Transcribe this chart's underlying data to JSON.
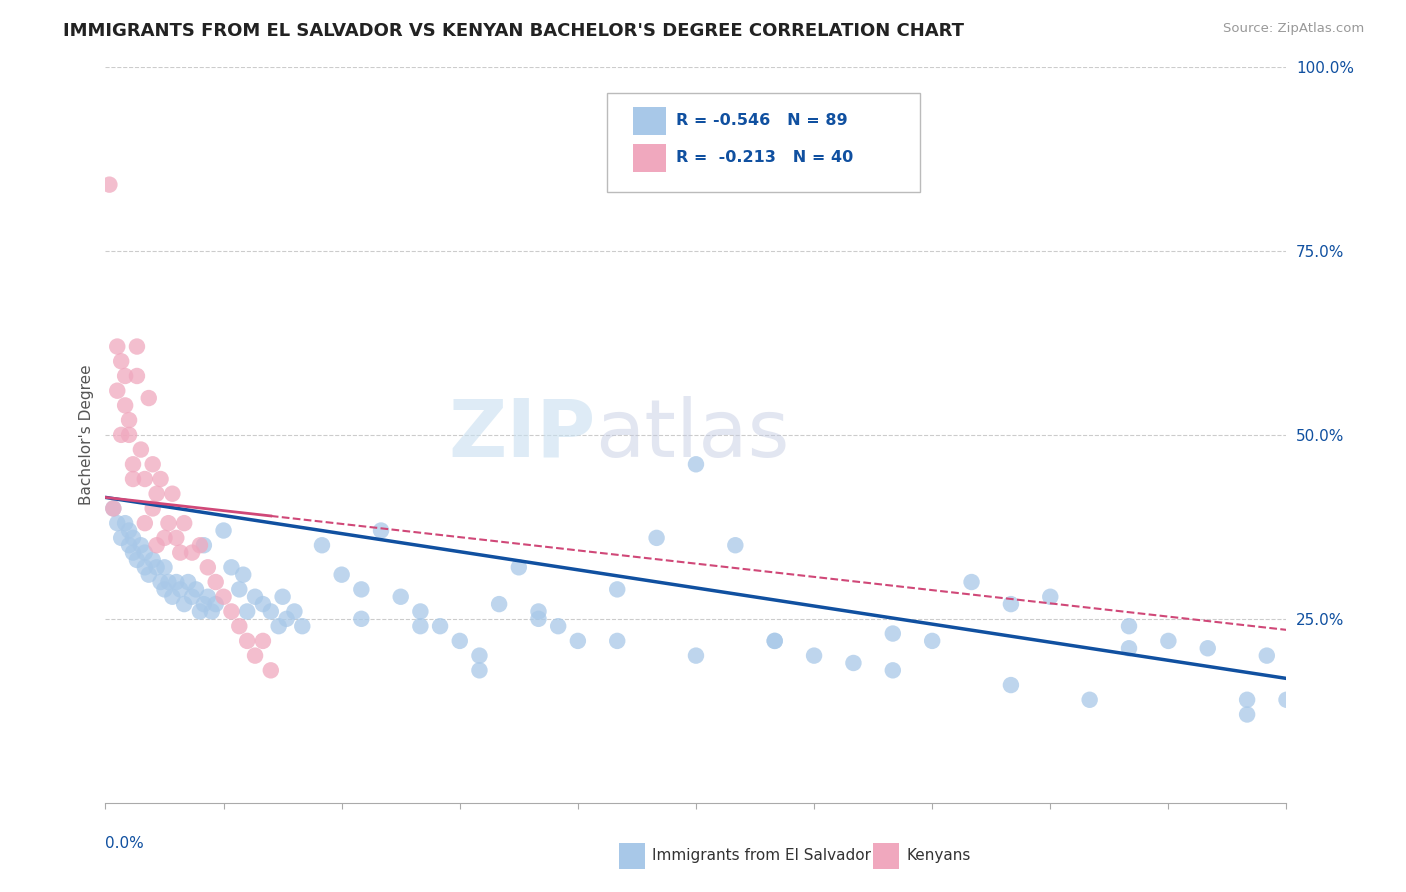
{
  "title": "IMMIGRANTS FROM EL SALVADOR VS KENYAN BACHELOR'S DEGREE CORRELATION CHART",
  "source": "Source: ZipAtlas.com",
  "ylabel": "Bachelor's Degree",
  "blue_color": "#a8c8e8",
  "pink_color": "#f0a8be",
  "blue_line_color": "#1050a0",
  "pink_line_color": "#d04878",
  "legend_text_color": "#1050a0",
  "blue_r": "-0.546",
  "blue_n": "89",
  "pink_r": "-0.213",
  "pink_n": "40",
  "xlim": [
    0.0,
    0.3
  ],
  "ylim": [
    0.0,
    1.0
  ],
  "yticks": [
    0.25,
    0.5,
    0.75,
    1.0
  ],
  "ytick_labels": [
    "25.0%",
    "50.0%",
    "75.0%",
    "100.0%"
  ],
  "blue_intercept": 0.415,
  "blue_slope": -0.82,
  "pink_intercept": 0.415,
  "pink_slope": -0.6,
  "blue_x": [
    0.002,
    0.003,
    0.004,
    0.005,
    0.006,
    0.006,
    0.007,
    0.007,
    0.008,
    0.009,
    0.01,
    0.01,
    0.011,
    0.012,
    0.013,
    0.014,
    0.015,
    0.016,
    0.017,
    0.018,
    0.019,
    0.02,
    0.021,
    0.022,
    0.023,
    0.024,
    0.025,
    0.026,
    0.027,
    0.028,
    0.03,
    0.032,
    0.034,
    0.036,
    0.038,
    0.04,
    0.042,
    0.044,
    0.046,
    0.048,
    0.05,
    0.055,
    0.06,
    0.065,
    0.07,
    0.075,
    0.08,
    0.085,
    0.09,
    0.095,
    0.1,
    0.105,
    0.11,
    0.115,
    0.12,
    0.13,
    0.14,
    0.15,
    0.16,
    0.17,
    0.18,
    0.19,
    0.2,
    0.21,
    0.22,
    0.23,
    0.24,
    0.25,
    0.26,
    0.27,
    0.28,
    0.29,
    0.295,
    0.3,
    0.015,
    0.025,
    0.035,
    0.045,
    0.065,
    0.08,
    0.095,
    0.11,
    0.13,
    0.15,
    0.17,
    0.2,
    0.23,
    0.26,
    0.29
  ],
  "blue_y": [
    0.4,
    0.38,
    0.36,
    0.38,
    0.37,
    0.35,
    0.34,
    0.36,
    0.33,
    0.35,
    0.34,
    0.32,
    0.31,
    0.33,
    0.32,
    0.3,
    0.32,
    0.3,
    0.28,
    0.3,
    0.29,
    0.27,
    0.3,
    0.28,
    0.29,
    0.26,
    0.27,
    0.28,
    0.26,
    0.27,
    0.37,
    0.32,
    0.29,
    0.26,
    0.28,
    0.27,
    0.26,
    0.24,
    0.25,
    0.26,
    0.24,
    0.35,
    0.31,
    0.29,
    0.37,
    0.28,
    0.26,
    0.24,
    0.22,
    0.2,
    0.27,
    0.32,
    0.26,
    0.24,
    0.22,
    0.29,
    0.36,
    0.46,
    0.35,
    0.22,
    0.2,
    0.19,
    0.23,
    0.22,
    0.3,
    0.27,
    0.28,
    0.14,
    0.21,
    0.22,
    0.21,
    0.14,
    0.2,
    0.14,
    0.29,
    0.35,
    0.31,
    0.28,
    0.25,
    0.24,
    0.18,
    0.25,
    0.22,
    0.2,
    0.22,
    0.18,
    0.16,
    0.24,
    0.12
  ],
  "pink_x": [
    0.001,
    0.002,
    0.003,
    0.003,
    0.004,
    0.004,
    0.005,
    0.005,
    0.006,
    0.006,
    0.007,
    0.007,
    0.008,
    0.008,
    0.009,
    0.01,
    0.01,
    0.011,
    0.012,
    0.012,
    0.013,
    0.013,
    0.014,
    0.015,
    0.016,
    0.017,
    0.018,
    0.019,
    0.02,
    0.022,
    0.024,
    0.026,
    0.028,
    0.03,
    0.032,
    0.034,
    0.036,
    0.038,
    0.04,
    0.042
  ],
  "pink_y": [
    0.84,
    0.4,
    0.62,
    0.56,
    0.6,
    0.5,
    0.58,
    0.54,
    0.52,
    0.5,
    0.46,
    0.44,
    0.62,
    0.58,
    0.48,
    0.44,
    0.38,
    0.55,
    0.46,
    0.4,
    0.42,
    0.35,
    0.44,
    0.36,
    0.38,
    0.42,
    0.36,
    0.34,
    0.38,
    0.34,
    0.35,
    0.32,
    0.3,
    0.28,
    0.26,
    0.24,
    0.22,
    0.2,
    0.22,
    0.18
  ]
}
